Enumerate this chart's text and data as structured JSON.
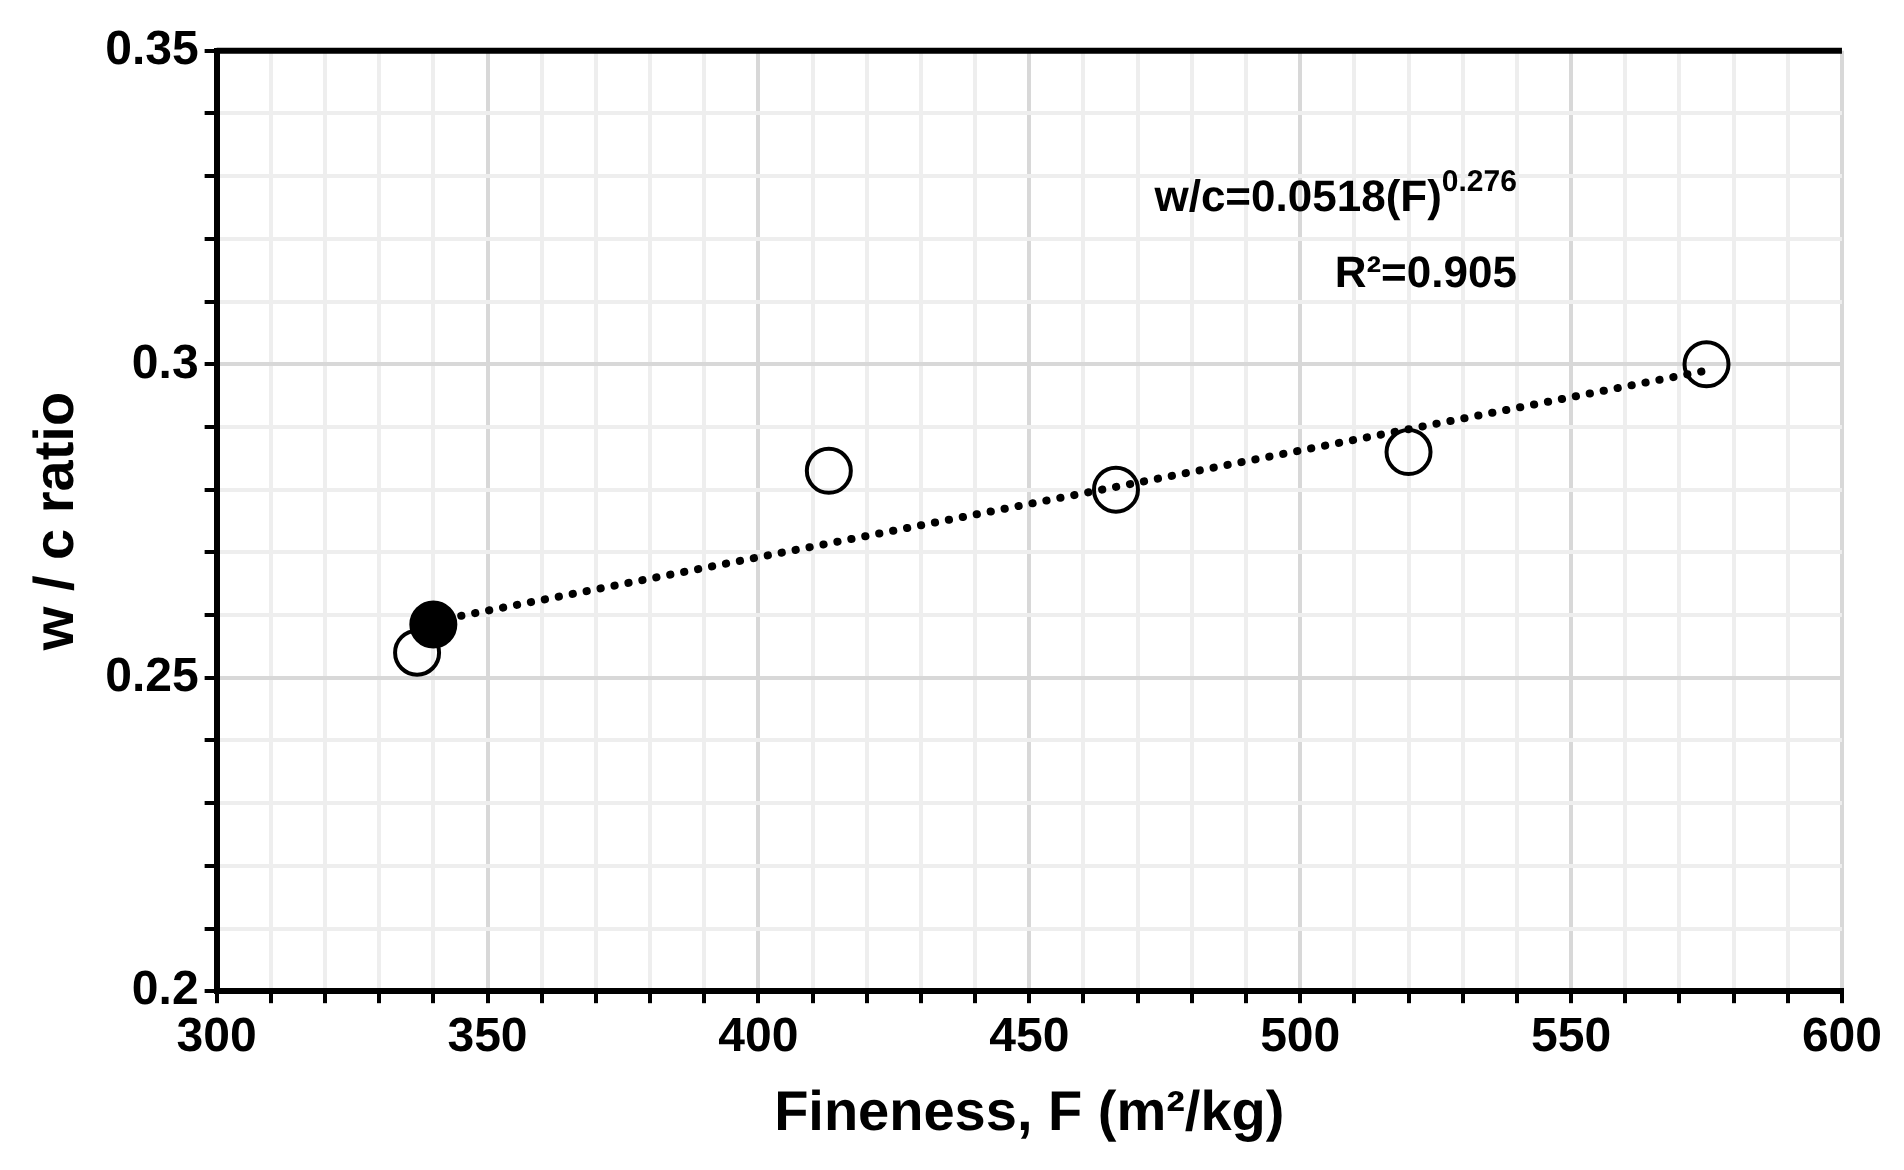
{
  "chart_data": {
    "type": "scatter",
    "xlabel": "Fineness, F (m²/kg)",
    "ylabel": "w / c ratio",
    "xlim": [
      300,
      600
    ],
    "ylim": [
      0.2,
      0.35
    ],
    "xticks": [
      300,
      {
        "value": 310,
        "label": null
      },
      {
        "value": 320,
        "label": null
      },
      {
        "value": 330,
        "label": null
      },
      {
        "value": 340,
        "label": null
      },
      350,
      {
        "value": 360,
        "label": null
      },
      {
        "value": 370,
        "label": null
      },
      {
        "value": 380,
        "label": null
      },
      {
        "value": 390,
        "label": null
      },
      400,
      {
        "value": 410,
        "label": null
      },
      {
        "value": 420,
        "label": null
      },
      {
        "value": 430,
        "label": null
      },
      {
        "value": 440,
        "label": null
      },
      450,
      {
        "value": 460,
        "label": null
      },
      {
        "value": 470,
        "label": null
      },
      {
        "value": 480,
        "label": null
      },
      {
        "value": 490,
        "label": null
      },
      500,
      {
        "value": 510,
        "label": null
      },
      {
        "value": 520,
        "label": null
      },
      {
        "value": 530,
        "label": null
      },
      {
        "value": 540,
        "label": null
      },
      550,
      {
        "value": 560,
        "label": null
      },
      {
        "value": 570,
        "label": null
      },
      {
        "value": 580,
        "label": null
      },
      {
        "value": 590,
        "label": null
      },
      600
    ],
    "yticks": [
      0.2,
      {
        "value": 0.21,
        "label": null
      },
      {
        "value": 0.22,
        "label": null
      },
      {
        "value": 0.23,
        "label": null
      },
      {
        "value": 0.24,
        "label": null
      },
      0.25,
      {
        "value": 0.26,
        "label": null
      },
      {
        "value": 0.27,
        "label": null
      },
      {
        "value": 0.28,
        "label": null
      },
      {
        "value": 0.29,
        "label": null
      },
      0.3,
      {
        "value": 0.31,
        "label": null
      },
      {
        "value": 0.32,
        "label": null
      },
      {
        "value": 0.33,
        "label": null
      },
      {
        "value": 0.34,
        "label": null
      },
      0.35
    ],
    "grid": true,
    "legend": false,
    "marker": "circle",
    "series": [
      {
        "type": "line",
        "line_style": "dotted",
        "marker": "none",
        "color": "#000000",
        "x": [
          340,
          575
        ],
        "values": [
          0.259,
          0.299
        ]
      },
      {
        "color": "#000000",
        "x": [
          337,
          413,
          466,
          520,
          575
        ],
        "values": [
          0.254,
          0.283,
          0.28,
          0.286,
          0.3
        ]
      },
      {
        "color": "#000000",
        "x": [
          340
        ],
        "values": [
          0.2585
        ]
      }
    ],
    "annotations": [
      "w/c=0.0518(F)$^{0.276}$",
      "R²=0.905"
    ]
  }
}
